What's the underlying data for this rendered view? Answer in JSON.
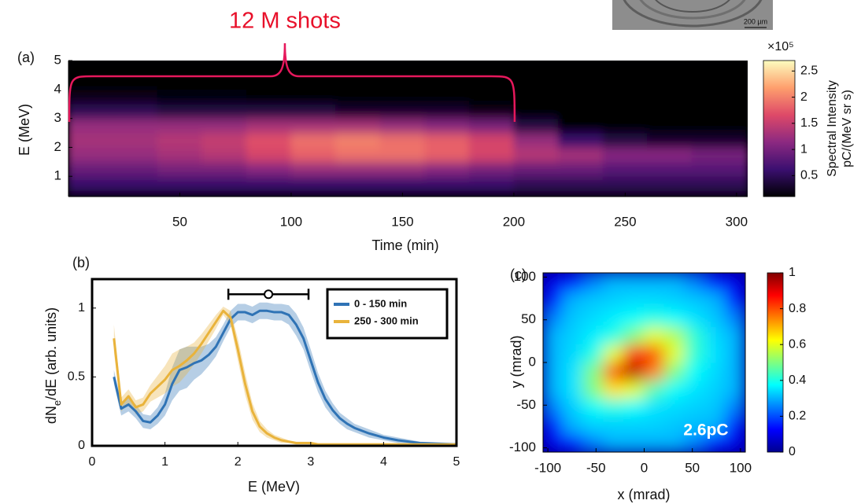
{
  "inset": {
    "scale_label": "200 µm"
  },
  "chart_data": [
    {
      "type": "heatmap",
      "panel_label": "(a)",
      "annotation": "12 M shots",
      "xlabel": "Time (min)",
      "ylabel": "E (MeV)",
      "x_edges": [
        0,
        20,
        40,
        60,
        80,
        100,
        120,
        140,
        160,
        180,
        200,
        220,
        240,
        260,
        280,
        305
      ],
      "y_edges": [
        0.3,
        0.5,
        1,
        1.5,
        2,
        2.5,
        3,
        3.5,
        4,
        4.5,
        5
      ],
      "z": [
        [
          0.2,
          0.2,
          0.2,
          0.2,
          0.2,
          0.2,
          0.2,
          0.2,
          0.2,
          0.2,
          0.2,
          0.2,
          0.2,
          0.2,
          0.2
        ],
        [
          0.6,
          0.6,
          0.6,
          0.6,
          0.6,
          0.6,
          0.6,
          0.6,
          0.6,
          0.6,
          0.5,
          0.5,
          0.5,
          0.5,
          0.5
        ],
        [
          0.9,
          0.9,
          1.0,
          1.0,
          1.1,
          1.2,
          1.2,
          1.2,
          1.1,
          1.0,
          0.9,
          0.9,
          0.8,
          0.8,
          0.8
        ],
        [
          1.2,
          1.2,
          1.3,
          1.4,
          1.6,
          1.8,
          1.9,
          1.9,
          1.8,
          1.6,
          1.4,
          1.3,
          1.1,
          1.1,
          1.0
        ],
        [
          1.3,
          1.3,
          1.4,
          1.5,
          1.7,
          1.9,
          2.0,
          1.9,
          1.8,
          1.6,
          1.2,
          0.6,
          0.4,
          0.3,
          0.3
        ],
        [
          1.2,
          1.2,
          1.2,
          1.2,
          1.3,
          1.3,
          1.3,
          1.2,
          1.1,
          1.0,
          0.4,
          0.1,
          0.05,
          0.05,
          0.05
        ],
        [
          0.5,
          0.5,
          0.4,
          0.4,
          0.4,
          0.4,
          0.3,
          0.3,
          0.3,
          0.2,
          0.05,
          0,
          0,
          0,
          0
        ],
        [
          0.2,
          0.2,
          0.15,
          0.15,
          0.1,
          0.1,
          0.1,
          0.1,
          0.1,
          0.05,
          0,
          0,
          0,
          0,
          0
        ],
        [
          0.05,
          0.05,
          0.05,
          0,
          0,
          0,
          0,
          0,
          0,
          0,
          0,
          0,
          0,
          0,
          0
        ],
        [
          0,
          0,
          0,
          0,
          0,
          0,
          0,
          0,
          0,
          0,
          0,
          0,
          0,
          0,
          0
        ]
      ],
      "xlim": [
        0,
        305
      ],
      "ylim": [
        0.3,
        5
      ],
      "xticks": [
        50,
        100,
        150,
        200,
        250,
        300
      ],
      "yticks": [
        1,
        2,
        3,
        4,
        5
      ],
      "colormap": "magma",
      "clim": [
        0.1,
        2.7
      ],
      "cticks": [
        0.5,
        1,
        1.5,
        2,
        2.5
      ],
      "colorbar_multiplier": "×10⁵",
      "colorbar_label": [
        "Spectral Intensity",
        "pC/(MeV sr s)"
      ]
    },
    {
      "type": "line",
      "panel_label": "(b)",
      "xlabel": "E (MeV)",
      "ylabel": [
        "dN",
        "e",
        "/dE (arb. units)"
      ],
      "x": [
        0.3,
        0.4,
        0.5,
        0.6,
        0.7,
        0.8,
        0.9,
        1.0,
        1.1,
        1.2,
        1.3,
        1.4,
        1.5,
        1.6,
        1.7,
        1.8,
        1.9,
        2.0,
        2.1,
        2.2,
        2.3,
        2.4,
        2.5,
        2.6,
        2.7,
        2.8,
        2.9,
        3.0,
        3.1,
        3.2,
        3.3,
        3.4,
        3.5,
        3.6,
        3.8,
        4.0,
        4.2,
        4.5,
        5.0
      ],
      "series": [
        {
          "name": "0 - 150 min",
          "color": "#2f73b5",
          "values": [
            0.5,
            0.27,
            0.3,
            0.25,
            0.18,
            0.17,
            0.22,
            0.3,
            0.45,
            0.55,
            0.57,
            0.6,
            0.62,
            0.66,
            0.72,
            0.82,
            0.92,
            0.97,
            0.97,
            0.95,
            0.98,
            0.98,
            0.97,
            0.97,
            0.95,
            0.88,
            0.78,
            0.62,
            0.46,
            0.34,
            0.26,
            0.2,
            0.16,
            0.13,
            0.09,
            0.06,
            0.04,
            0.02,
            0.01
          ],
          "error": [
            0.05,
            0.05,
            0.05,
            0.05,
            0.05,
            0.05,
            0.06,
            0.08,
            0.12,
            0.15,
            0.15,
            0.12,
            0.1,
            0.08,
            0.07,
            0.06,
            0.06,
            0.06,
            0.06,
            0.06,
            0.06,
            0.06,
            0.06,
            0.06,
            0.07,
            0.08,
            0.08,
            0.08,
            0.07,
            0.06,
            0.05,
            0.04,
            0.04,
            0.03,
            0.03,
            0.02,
            0.02,
            0.01,
            0.01
          ]
        },
        {
          "name": "250 - 300 min",
          "color": "#e9b33b",
          "values": [
            0.78,
            0.3,
            0.36,
            0.28,
            0.3,
            0.38,
            0.43,
            0.48,
            0.55,
            0.58,
            0.62,
            0.67,
            0.74,
            0.82,
            0.9,
            0.98,
            0.93,
            0.7,
            0.45,
            0.25,
            0.14,
            0.09,
            0.06,
            0.04,
            0.03,
            0.02,
            0.02,
            0.02,
            0.01,
            0.01,
            0.01,
            0.01,
            0.01,
            0.01,
            0.01,
            0.01,
            0.01,
            0.01,
            0.01
          ],
          "error": [
            0.1,
            0.05,
            0.05,
            0.05,
            0.05,
            0.06,
            0.08,
            0.1,
            0.12,
            0.12,
            0.1,
            0.08,
            0.07,
            0.06,
            0.05,
            0.03,
            0.05,
            0.08,
            0.08,
            0.06,
            0.04,
            0.03,
            0.02,
            0.02,
            0.01,
            0.01,
            0.01,
            0.01,
            0.01,
            0.01,
            0.01,
            0.01,
            0.01,
            0.01,
            0.01,
            0.01,
            0.01,
            0.01,
            0.01
          ]
        }
      ],
      "xlim": [
        0,
        5
      ],
      "ylim": [
        0,
        1.21
      ],
      "xticks": [
        0,
        1,
        2,
        3,
        4,
        5
      ],
      "yticks": [
        0,
        0.5,
        1
      ],
      "legend": "upper right",
      "errorbar": {
        "x": 2.42,
        "y": 1.1,
        "xmin": 1.87,
        "xmax": 2.97
      }
    },
    {
      "type": "image",
      "panel_label": "(c)",
      "annotation": "2.6pC",
      "xlabel": "x (mrad)",
      "ylabel": "y (mrad)",
      "x_edges": [
        -105,
        -84,
        -63,
        -42,
        -21,
        0,
        21,
        42,
        63,
        84,
        105
      ],
      "y_edges": [
        -105,
        -84,
        -63,
        -42,
        -21,
        0,
        21,
        42,
        63,
        84,
        105
      ],
      "z": [
        [
          0.1,
          0.15,
          0.25,
          0.3,
          0.3,
          0.3,
          0.3,
          0.25,
          0.15,
          0.1
        ],
        [
          0.15,
          0.3,
          0.33,
          0.33,
          0.33,
          0.33,
          0.32,
          0.31,
          0.3,
          0.15
        ],
        [
          0.25,
          0.33,
          0.38,
          0.4,
          0.38,
          0.35,
          0.34,
          0.33,
          0.32,
          0.25
        ],
        [
          0.3,
          0.35,
          0.5,
          0.65,
          0.6,
          0.45,
          0.38,
          0.35,
          0.33,
          0.3
        ],
        [
          0.3,
          0.35,
          0.5,
          0.8,
          0.95,
          0.75,
          0.5,
          0.38,
          0.34,
          0.3
        ],
        [
          0.3,
          0.34,
          0.4,
          0.6,
          0.85,
          0.8,
          0.6,
          0.42,
          0.35,
          0.3
        ],
        [
          0.3,
          0.33,
          0.36,
          0.4,
          0.5,
          0.6,
          0.55,
          0.42,
          0.34,
          0.3
        ],
        [
          0.25,
          0.32,
          0.34,
          0.36,
          0.38,
          0.4,
          0.38,
          0.35,
          0.32,
          0.25
        ],
        [
          0.15,
          0.3,
          0.32,
          0.33,
          0.34,
          0.34,
          0.33,
          0.32,
          0.3,
          0.15
        ],
        [
          0.1,
          0.15,
          0.25,
          0.3,
          0.3,
          0.3,
          0.3,
          0.25,
          0.15,
          0.1
        ]
      ],
      "xlim": [
        -105,
        105
      ],
      "ylim": [
        -105,
        105
      ],
      "xticks": [
        -100,
        -50,
        0,
        50,
        100
      ],
      "yticks": [
        -100,
        -50,
        0,
        50,
        100
      ],
      "colormap": "jet",
      "clim": [
        0,
        1
      ],
      "cticks": [
        0,
        0.2,
        0.4,
        0.6,
        0.8,
        1
      ]
    }
  ]
}
